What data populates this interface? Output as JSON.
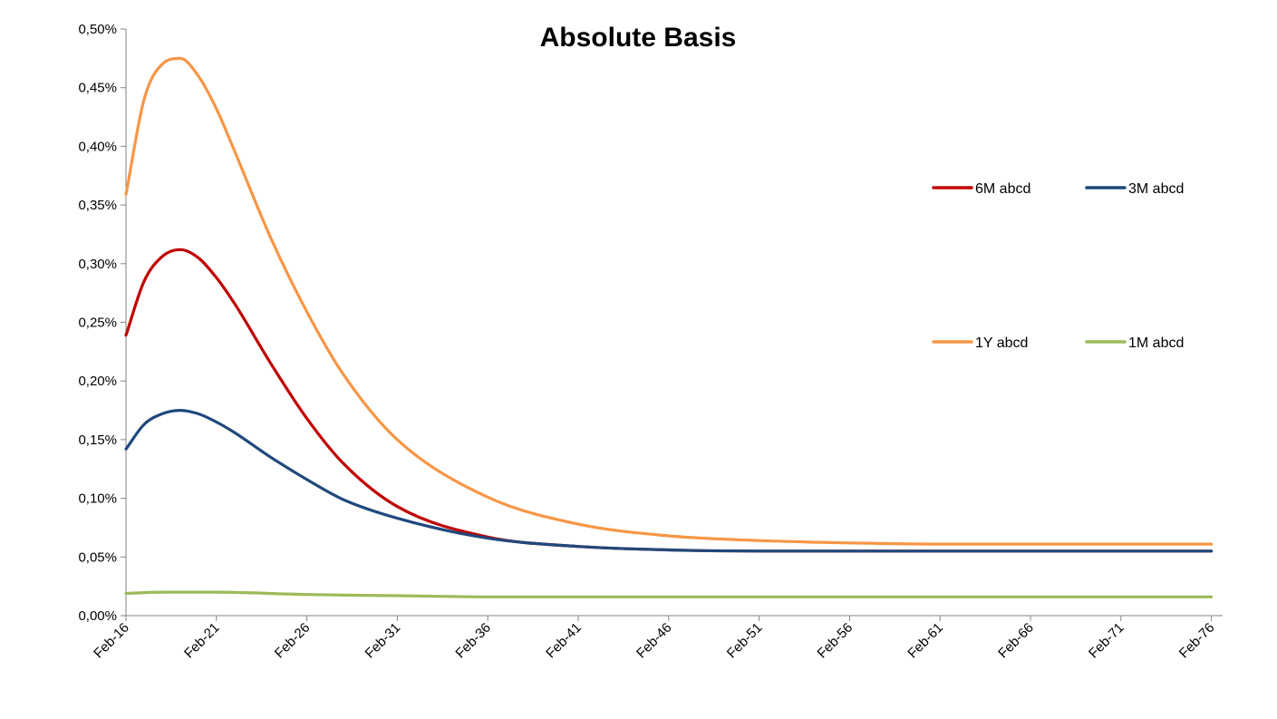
{
  "chart_data": {
    "type": "line",
    "title": "Absolute Basis",
    "xlabel": "",
    "ylabel": "",
    "x_tick_labels": [
      "Feb-16",
      "Feb-21",
      "Feb-26",
      "Feb-31",
      "Feb-36",
      "Feb-41",
      "Feb-46",
      "Feb-51",
      "Feb-56",
      "Feb-61",
      "Feb-66",
      "Feb-71",
      "Feb-76"
    ],
    "x_range_years": [
      0,
      60.5
    ],
    "x_units": "years from Feb-16",
    "y_tick_labels": [
      "0,00%",
      "0,05%",
      "0,10%",
      "0,15%",
      "0,20%",
      "0,25%",
      "0,30%",
      "0,35%",
      "0,40%",
      "0,45%",
      "0,50%"
    ],
    "ylim": [
      0,
      0.5
    ],
    "y_units": "percent",
    "legend_position": "right",
    "grid": false,
    "series": [
      {
        "name": "6M abcd",
        "color": "#C00000",
        "x": [
          0,
          1,
          2,
          3,
          4,
          5,
          6,
          8,
          10,
          12,
          15,
          20,
          25,
          30,
          35,
          40,
          45,
          50,
          55,
          60
        ],
        "values": [
          0.239,
          0.285,
          0.306,
          0.312,
          0.305,
          0.288,
          0.266,
          0.215,
          0.168,
          0.13,
          0.093,
          0.067,
          0.059,
          0.056,
          0.055,
          0.055,
          0.055,
          0.055,
          0.055,
          0.055
        ]
      },
      {
        "name": "3M abcd",
        "color": "#1F497D",
        "x": [
          0,
          1,
          2,
          3,
          4,
          5,
          6,
          8,
          10,
          12,
          15,
          20,
          25,
          30,
          35,
          40,
          45,
          50,
          55,
          60
        ],
        "values": [
          0.142,
          0.163,
          0.172,
          0.175,
          0.172,
          0.165,
          0.156,
          0.135,
          0.116,
          0.099,
          0.083,
          0.066,
          0.059,
          0.056,
          0.055,
          0.055,
          0.055,
          0.055,
          0.055,
          0.055
        ]
      },
      {
        "name": "1Y abcd",
        "color": "#F79646",
        "x": [
          0,
          1,
          2,
          3,
          4,
          5,
          6,
          8,
          10,
          12,
          15,
          20,
          25,
          30,
          35,
          40,
          45,
          50,
          55,
          60
        ],
        "values": [
          0.359,
          0.44,
          0.47,
          0.475,
          0.46,
          0.432,
          0.396,
          0.322,
          0.259,
          0.206,
          0.15,
          0.101,
          0.078,
          0.068,
          0.064,
          0.062,
          0.061,
          0.061,
          0.061,
          0.061
        ]
      },
      {
        "name": "1M abcd",
        "color": "#9BBB59",
        "x": [
          0,
          2,
          5,
          10,
          15,
          20,
          30,
          40,
          50,
          60
        ],
        "values": [
          0.019,
          0.02,
          0.02,
          0.018,
          0.017,
          0.016,
          0.016,
          0.016,
          0.016,
          0.016
        ]
      }
    ]
  }
}
